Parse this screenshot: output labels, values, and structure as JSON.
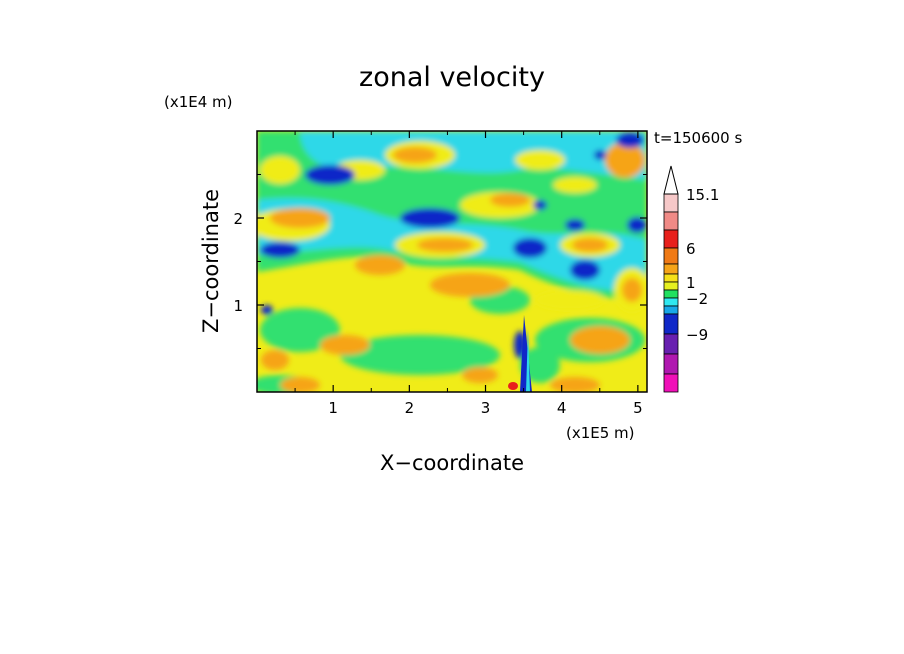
{
  "chart_data": {
    "type": "heatmap",
    "title": "zonal velocity",
    "xlabel": "X−coordinate",
    "ylabel": "Z−coordinate",
    "x_unit": "(x1E5 m)",
    "y_unit": "(x1E4 m)",
    "time_label": "t=150600 s",
    "x_ticks": [
      "1",
      "2",
      "3",
      "4",
      "5"
    ],
    "x_tick_values": [
      1,
      2,
      3,
      4,
      5
    ],
    "y_ticks": [
      "1",
      "2"
    ],
    "y_tick_values": [
      1,
      2
    ],
    "xlim": [
      0,
      5.12
    ],
    "ylim": [
      0,
      3.0
    ],
    "colorbar": {
      "labels": [
        "15.1",
        "6",
        "1",
        "−2",
        "−9"
      ],
      "label_values": [
        15.1,
        6,
        1,
        -2,
        -9
      ],
      "bands_top_to_bottom": [
        "#f6c8c8",
        "#f08a86",
        "#e8201c",
        "#f07a16",
        "#f6a418",
        "#f6e018",
        "#e6f020",
        "#20e060",
        "#30e8f0",
        "#18a8e8",
        "#1028c8",
        "#6820b0",
        "#b018b0",
        "#f010b8"
      ]
    }
  }
}
